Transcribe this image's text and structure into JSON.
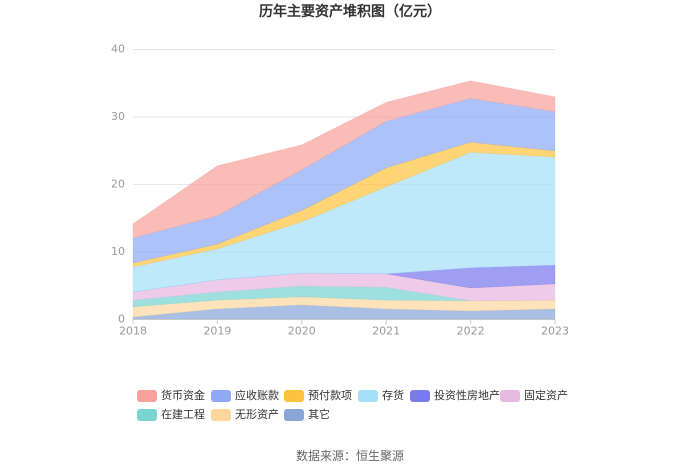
{
  "source": "数据来源：恒生聚源",
  "chart_data": {
    "type": "area",
    "stacked": true,
    "title": "历年主要资产堆积图（亿元）",
    "x": [
      "2018",
      "2019",
      "2020",
      "2021",
      "2022",
      "2023"
    ],
    "ylim": [
      0,
      40
    ],
    "yticks": [
      0,
      10,
      20,
      30,
      40
    ],
    "grid": true,
    "legend_position": "bottom",
    "series": [
      {
        "name": "货币资金",
        "color": "#f7a29b",
        "values": [
          2.1,
          7.4,
          3.7,
          2.8,
          2.6,
          2.2
        ]
      },
      {
        "name": "应收账款",
        "color": "#8eaaf6",
        "values": [
          3.7,
          4.2,
          6.0,
          6.9,
          6.5,
          5.8
        ]
      },
      {
        "name": "预付款项",
        "color": "#fdc33f",
        "values": [
          0.6,
          0.7,
          1.7,
          2.8,
          1.5,
          0.9
        ]
      },
      {
        "name": "存货",
        "color": "#a6dffa",
        "values": [
          3.7,
          4.6,
          7.6,
          12.9,
          17.1,
          16.0
        ]
      },
      {
        "name": "投资性房地产",
        "color": "#7b79ee",
        "values": [
          0,
          0,
          0,
          0,
          3.0,
          2.8
        ]
      },
      {
        "name": "固定资产",
        "color": "#e8b9e1",
        "values": [
          1.2,
          1.8,
          1.9,
          2.0,
          1.9,
          2.4
        ]
      },
      {
        "name": "在建工程",
        "color": "#79d4d2",
        "values": [
          1.0,
          1.2,
          1.6,
          1.9,
          0.0,
          0.0
        ]
      },
      {
        "name": "无形资产",
        "color": "#fdd79e",
        "values": [
          1.5,
          1.3,
          1.2,
          1.3,
          1.5,
          1.3
        ]
      },
      {
        "name": "其它",
        "color": "#89a6d9",
        "values": [
          0.3,
          1.5,
          2.1,
          1.5,
          1.2,
          1.5
        ]
      }
    ]
  }
}
